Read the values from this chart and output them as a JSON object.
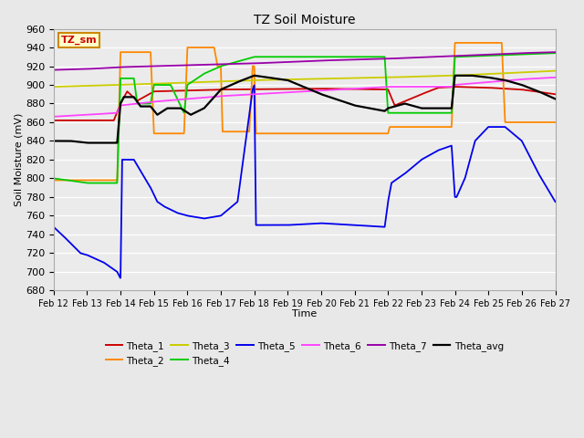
{
  "title": "TZ Soil Moisture",
  "xlabel": "Time",
  "ylabel": "Soil Moisture (mV)",
  "ylim": [
    680,
    960
  ],
  "yticks": [
    680,
    700,
    720,
    740,
    760,
    780,
    800,
    820,
    840,
    860,
    880,
    900,
    920,
    940,
    960
  ],
  "xtick_labels": [
    "Feb 12",
    "Feb 13",
    "Feb 14",
    "Feb 15",
    "Feb 16",
    "Feb 17",
    "Feb 18",
    "Feb 19",
    "Feb 20",
    "Feb 21",
    "Feb 22",
    "Feb 23",
    "Feb 24",
    "Feb 25",
    "Feb 26",
    "Feb 27"
  ],
  "fig_bg": "#e8e8e8",
  "plot_bg": "#ebebeb",
  "grid_color": "#ffffff",
  "colors": {
    "Theta_1": "#cc0000",
    "Theta_2": "#ff8800",
    "Theta_3": "#cccc00",
    "Theta_4": "#00cc00",
    "Theta_5": "#0000ee",
    "Theta_6": "#ff44ff",
    "Theta_7": "#9900aa",
    "Theta_avg": "#000000"
  },
  "label_box": {
    "text": "TZ_sm",
    "facecolor": "#ffffcc",
    "edgecolor": "#cc8800",
    "textcolor": "#cc0000"
  }
}
